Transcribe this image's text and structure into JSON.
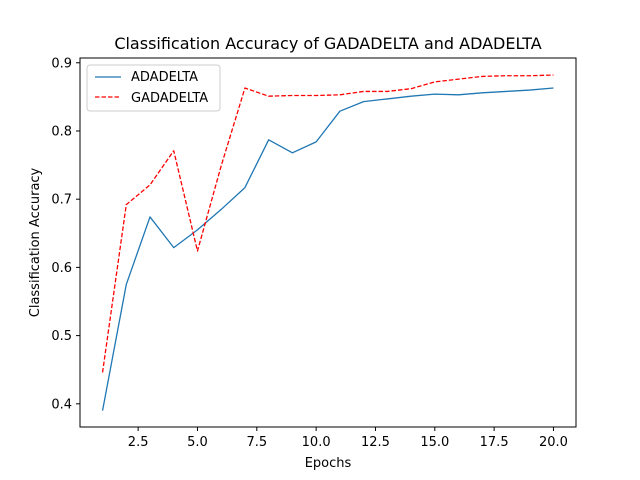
{
  "chart_data": {
    "type": "line",
    "title": "Classification Accuracy of GADADELTA and ADADELTA",
    "xlabel": "Epochs",
    "ylabel": "Classification Accuracy",
    "xlim": [
      0.05,
      20.95
    ],
    "ylim": [
      0.366,
      0.907
    ],
    "xticks": [
      2.5,
      5.0,
      7.5,
      10.0,
      12.5,
      15.0,
      17.5,
      20.0
    ],
    "xtick_labels": [
      "2.5",
      "5.0",
      "7.5",
      "10.0",
      "12.5",
      "15.0",
      "17.5",
      "20.0"
    ],
    "yticks": [
      0.4,
      0.5,
      0.6,
      0.7,
      0.8,
      0.9
    ],
    "ytick_labels": [
      "0.4",
      "0.5",
      "0.6",
      "0.7",
      "0.8",
      "0.9"
    ],
    "grid": false,
    "legend_position": "top-left",
    "x": [
      1,
      2,
      3,
      4,
      5,
      6,
      7,
      8,
      9,
      10,
      11,
      12,
      13,
      14,
      15,
      16,
      17,
      18,
      19,
      20
    ],
    "series": [
      {
        "name": "ADADELTA",
        "color": "#1f77b4",
        "style": "solid",
        "values": [
          0.39,
          0.575,
          0.674,
          0.629,
          0.655,
          0.685,
          0.717,
          0.787,
          0.768,
          0.784,
          0.829,
          0.843,
          0.847,
          0.851,
          0.854,
          0.853,
          0.856,
          0.858,
          0.86,
          0.863
        ]
      },
      {
        "name": "GADADELTA",
        "color": "#ff0000",
        "style": "dashed",
        "values": [
          0.446,
          0.692,
          0.721,
          0.771,
          0.624,
          0.749,
          0.863,
          0.851,
          0.852,
          0.852,
          0.853,
          0.858,
          0.858,
          0.862,
          0.872,
          0.876,
          0.88,
          0.881,
          0.881,
          0.882
        ]
      }
    ]
  }
}
